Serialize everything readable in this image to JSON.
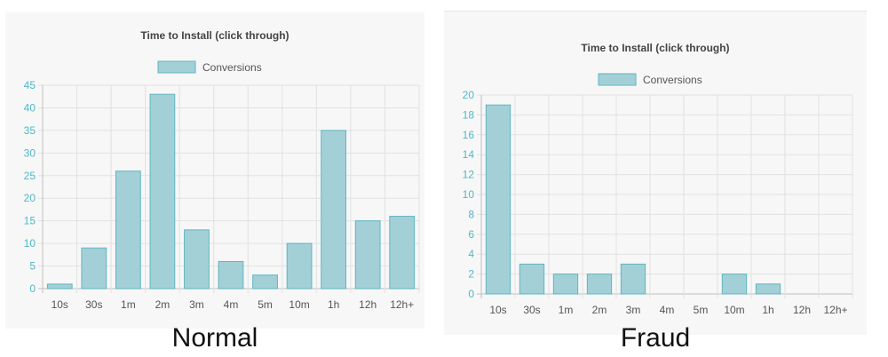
{
  "captions": {
    "left": "Normal",
    "right": "Fraud"
  },
  "colors": {
    "bar_fill": "#a3d0d6",
    "bar_stroke": "#5fb6c2",
    "y_tick": "#4fb8c6",
    "x_tick": "#555555",
    "grid": "#e2e2e2",
    "title": "#444444"
  },
  "chart_data": [
    {
      "id": "normal",
      "type": "bar",
      "title": "Time to Install (click through)",
      "legend": {
        "label": "Conversions",
        "position": "top"
      },
      "categories": [
        "10s",
        "30s",
        "1m",
        "2m",
        "3m",
        "4m",
        "5m",
        "10m",
        "1h",
        "12h",
        "12h+"
      ],
      "series": [
        {
          "name": "Conversions",
          "values": [
            1,
            9,
            26,
            43,
            13,
            6,
            3,
            10,
            35,
            15,
            16
          ]
        }
      ],
      "ylim": [
        0,
        45
      ],
      "yticks": [
        0,
        5,
        10,
        15,
        20,
        25,
        30,
        35,
        40,
        45
      ],
      "grid": true
    },
    {
      "id": "fraud",
      "type": "bar",
      "title": "Time to Install (click through)",
      "legend": {
        "label": "Conversions",
        "position": "top"
      },
      "categories": [
        "10s",
        "30s",
        "1m",
        "2m",
        "3m",
        "4m",
        "5m",
        "10m",
        "1h",
        "12h",
        "12h+"
      ],
      "series": [
        {
          "name": "Conversions",
          "values": [
            19,
            3,
            2,
            2,
            3,
            0,
            0,
            2,
            1,
            0,
            0
          ]
        }
      ],
      "ylim": [
        0,
        20
      ],
      "yticks": [
        0,
        2,
        4,
        6,
        8,
        10,
        12,
        14,
        16,
        18,
        20
      ],
      "grid": true
    }
  ]
}
